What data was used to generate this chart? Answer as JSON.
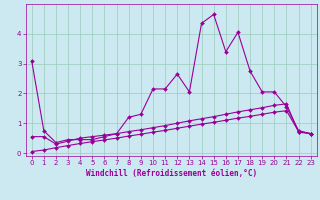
{
  "xlabel": "Windchill (Refroidissement éolien,°C)",
  "bg_color": "#cce8f0",
  "line_color": "#990099",
  "grid_color": "#99ccbb",
  "xlim": [
    -0.5,
    23.5
  ],
  "ylim": [
    -0.1,
    5.0
  ],
  "yticks": [
    0,
    1,
    2,
    3,
    4
  ],
  "xticks": [
    0,
    1,
    2,
    3,
    4,
    5,
    6,
    7,
    8,
    9,
    10,
    11,
    12,
    13,
    14,
    15,
    16,
    17,
    18,
    19,
    20,
    21,
    22,
    23
  ],
  "line1_x": [
    0,
    1,
    2,
    3,
    4,
    5,
    6,
    7,
    8,
    9,
    10,
    11,
    12,
    13,
    14,
    15,
    16,
    17,
    18,
    19,
    20,
    21,
    22,
    23
  ],
  "line1_y": [
    3.1,
    0.75,
    0.35,
    0.45,
    0.45,
    0.45,
    0.55,
    0.65,
    1.2,
    1.3,
    2.15,
    2.15,
    2.65,
    2.05,
    4.35,
    4.65,
    3.4,
    4.05,
    2.75,
    2.05,
    2.05,
    1.55,
    0.75,
    0.65
  ],
  "line2_x": [
    0,
    1,
    2,
    3,
    4,
    5,
    6,
    7,
    8,
    9,
    10,
    11,
    12,
    13,
    14,
    15,
    16,
    17,
    18,
    19,
    20,
    21,
    22,
    23
  ],
  "line2_y": [
    0.55,
    0.55,
    0.3,
    0.4,
    0.5,
    0.55,
    0.6,
    0.65,
    0.72,
    0.78,
    0.85,
    0.92,
    1.0,
    1.08,
    1.15,
    1.22,
    1.3,
    1.38,
    1.45,
    1.52,
    1.6,
    1.65,
    0.7,
    0.65
  ],
  "line3_x": [
    0,
    1,
    2,
    3,
    4,
    5,
    6,
    7,
    8,
    9,
    10,
    11,
    12,
    13,
    14,
    15,
    16,
    17,
    18,
    19,
    20,
    21,
    22,
    23
  ],
  "line3_y": [
    0.05,
    0.1,
    0.18,
    0.25,
    0.32,
    0.38,
    0.44,
    0.5,
    0.57,
    0.63,
    0.7,
    0.76,
    0.83,
    0.9,
    0.97,
    1.03,
    1.1,
    1.17,
    1.23,
    1.3,
    1.37,
    1.42,
    0.72,
    0.65
  ],
  "tick_fontsize": 5.0,
  "xlabel_fontsize": 5.5,
  "marker_size": 2.0,
  "linewidth": 0.8
}
